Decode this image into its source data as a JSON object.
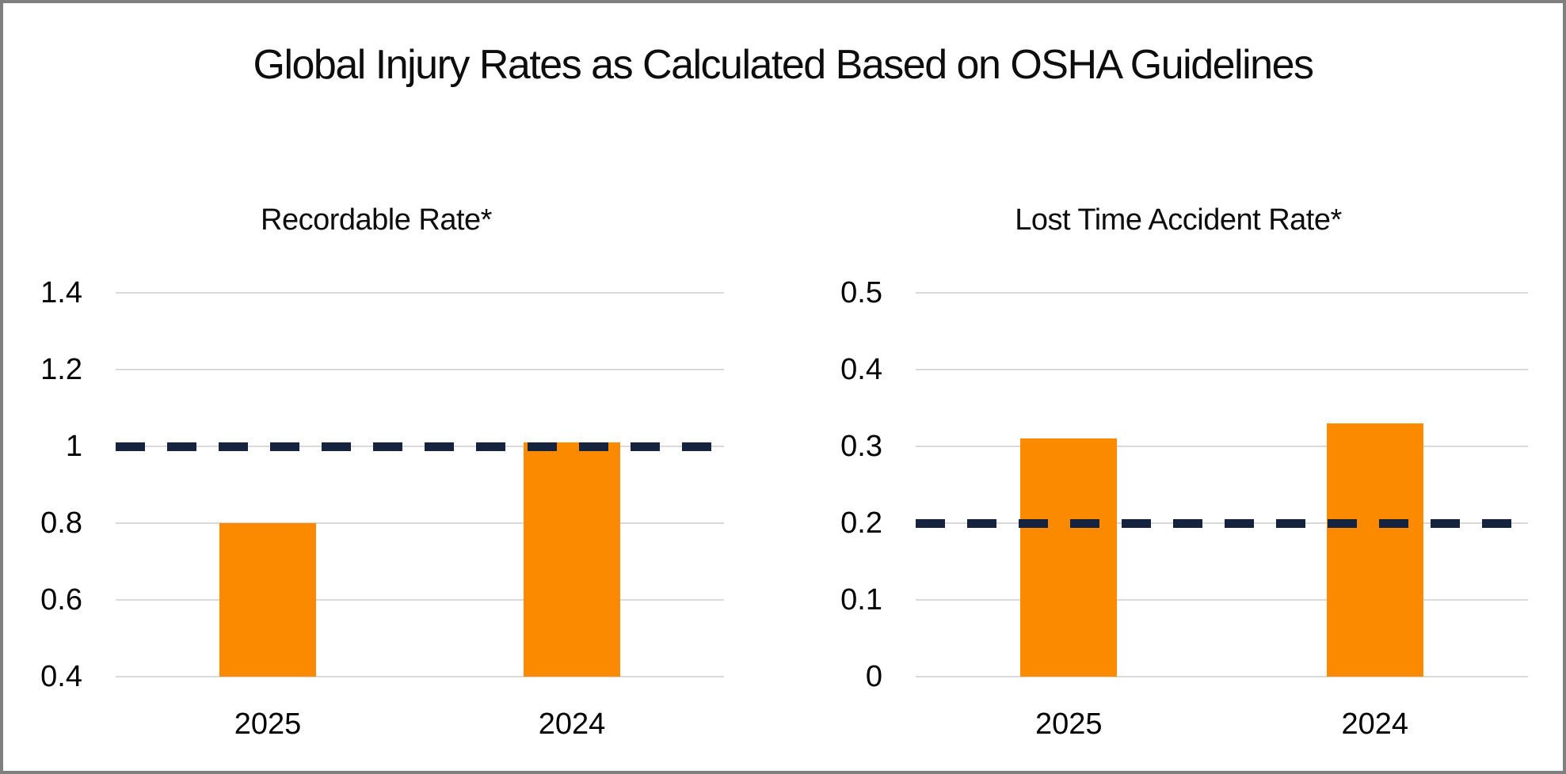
{
  "page": {
    "title": "Global Injury Rates as Calculated Based on OSHA Guidelines"
  },
  "colors": {
    "bar_orange": "#FC8A00",
    "target_navy": "#16233F",
    "gridline_gray": "#D9D9D9",
    "border_gray": "#7F7F7F",
    "text_black": "#000000"
  },
  "chart_data": [
    {
      "type": "bar",
      "title": "Recordable Rate*",
      "categories": [
        "2025",
        "2024"
      ],
      "values": [
        0.8,
        1.01
      ],
      "ylim": [
        0.4,
        1.4
      ],
      "ytick_values": [
        1.4,
        1.2,
        1.0,
        0.8,
        0.6,
        0.4
      ],
      "ytick_labels": [
        "1.4",
        "1.2",
        "1",
        "0.8",
        "0.6",
        "0.4"
      ],
      "target_line_value": 1.0,
      "target_line_style": "dashed",
      "grid": true,
      "legend": "none",
      "xlabel": "",
      "ylabel": ""
    },
    {
      "type": "bar",
      "title": "Lost Time Accident Rate*",
      "categories": [
        "2025",
        "2024"
      ],
      "values": [
        0.31,
        0.33
      ],
      "ylim": [
        0,
        0.5
      ],
      "ytick_values": [
        0.5,
        0.4,
        0.3,
        0.2,
        0.1,
        0
      ],
      "ytick_labels": [
        "0.5",
        "0.4",
        "0.3",
        "0.2",
        "0.1",
        "0"
      ],
      "target_line_value": 0.2,
      "target_line_style": "dashed",
      "grid": true,
      "legend": "none",
      "xlabel": "",
      "ylabel": ""
    }
  ]
}
